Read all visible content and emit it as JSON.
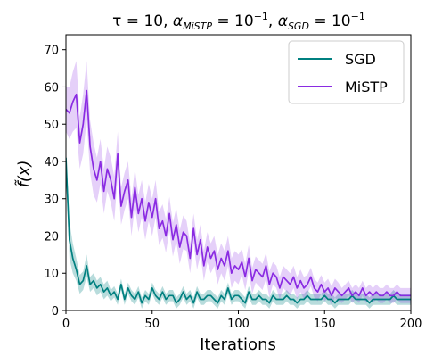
{
  "chart_data": {
    "type": "line",
    "title": "τ = 10, α_MiSTP = 10^−1, α_SGD = 10^−1",
    "title_parts": {
      "tau": "τ = 10, ",
      "alpha1": "α",
      "sub1": "MiSTP",
      "mid1": " = 10",
      "sup1": "−1",
      "comma": ", ",
      "alpha2": "α",
      "sub2": "SGD",
      "mid2": " = 10",
      "sup2": "−1"
    },
    "xlabel": "Iterations",
    "ylabel": "f̃(x)",
    "xlim": [
      0,
      200
    ],
    "ylim": [
      0,
      74
    ],
    "xticks": [
      0,
      50,
      100,
      150,
      200
    ],
    "yticks": [
      0,
      10,
      20,
      30,
      40,
      50,
      60,
      70
    ],
    "grid": false,
    "legend_position": "top-right",
    "x": [
      0,
      2,
      4,
      6,
      8,
      10,
      12,
      14,
      16,
      18,
      20,
      22,
      24,
      26,
      28,
      30,
      32,
      34,
      36,
      38,
      40,
      42,
      44,
      46,
      48,
      50,
      52,
      54,
      56,
      58,
      60,
      62,
      64,
      66,
      68,
      70,
      72,
      74,
      76,
      78,
      80,
      82,
      84,
      86,
      88,
      90,
      92,
      94,
      96,
      98,
      100,
      102,
      104,
      106,
      108,
      110,
      112,
      114,
      116,
      118,
      120,
      122,
      124,
      126,
      128,
      130,
      132,
      134,
      136,
      138,
      140,
      142,
      144,
      146,
      148,
      150,
      152,
      154,
      156,
      158,
      160,
      162,
      164,
      166,
      168,
      170,
      172,
      174,
      176,
      178,
      180,
      182,
      184,
      186,
      188,
      190,
      192,
      194,
      196,
      198,
      200
    ],
    "series": [
      {
        "name": "SGD",
        "color": "#008080",
        "values": [
          41,
          19,
          14,
          11,
          7,
          8,
          12,
          7,
          8,
          6,
          7,
          5,
          6,
          4,
          5,
          3,
          7,
          3,
          6,
          4,
          3,
          5,
          2,
          4,
          3,
          6,
          4,
          3,
          5,
          3,
          4,
          4,
          2,
          3,
          5,
          3,
          4,
          2,
          5,
          3,
          3,
          4,
          4,
          3,
          2,
          4,
          3,
          6,
          3,
          4,
          4,
          3,
          2,
          5,
          3,
          3,
          4,
          3,
          3,
          2,
          4,
          3,
          3,
          3,
          4,
          3,
          3,
          2,
          3,
          3,
          4,
          3,
          3,
          3,
          3,
          4,
          3,
          3,
          2,
          3,
          3,
          3,
          3,
          4,
          3,
          3,
          3,
          3,
          2,
          3,
          3,
          3,
          3,
          3,
          3,
          4,
          3,
          3,
          3,
          3,
          3
        ],
        "band": [
          3,
          5,
          4,
          3,
          2.5,
          2.5,
          3,
          2,
          2,
          2,
          2,
          2,
          2,
          1.5,
          1.5,
          1.5,
          1.5,
          1.5,
          1.5,
          1.5,
          1.5,
          1.5,
          1.5,
          1.5,
          1.5,
          1.5,
          1.5,
          1.5,
          1.5,
          1.5,
          1.5,
          1.5,
          1.5,
          1.5,
          1.5,
          1.5,
          1.5,
          1.5,
          1.5,
          1.5,
          1.5,
          1.5,
          1.5,
          1.5,
          1.5,
          1.5,
          1.5,
          1.5,
          1.5,
          1.5,
          1.5,
          1.5,
          1.5,
          1.5,
          1.5,
          1.5,
          1.5,
          1.5,
          1.5,
          1.5,
          1.5,
          1.5,
          1.5,
          1.5,
          1.5,
          1.5,
          1.5,
          1.5,
          1.5,
          1.5,
          1.5,
          1.5,
          1.5,
          1.5,
          1.5,
          1.5,
          1.5,
          1.5,
          1.5,
          1.5,
          1.5,
          1.5,
          1.5,
          1.5,
          1.5,
          1.5,
          1.5,
          1.5,
          1.5,
          1.5,
          1.5,
          1.5,
          1.5,
          1.5,
          1.5,
          1.5,
          1.5,
          1.5,
          1.5,
          1.5,
          1.5
        ]
      },
      {
        "name": "MiSTP",
        "color": "#8A2BE2",
        "values": [
          54,
          53,
          56,
          58,
          45,
          50,
          59,
          44,
          38,
          35,
          40,
          32,
          38,
          35,
          30,
          42,
          28,
          32,
          35,
          25,
          33,
          26,
          30,
          24,
          29,
          25,
          30,
          22,
          24,
          20,
          26,
          19,
          23,
          17,
          21,
          20,
          14,
          22,
          15,
          19,
          12,
          17,
          14,
          16,
          11,
          14,
          12,
          16,
          10,
          12,
          11,
          13,
          9,
          14,
          8,
          11,
          10,
          9,
          12,
          7,
          10,
          9,
          6,
          9,
          8,
          7,
          9,
          6,
          8,
          6,
          7,
          9,
          6,
          5,
          7,
          5,
          6,
          4,
          6,
          5,
          4,
          5,
          6,
          4,
          5,
          4,
          6,
          4,
          5,
          4,
          5,
          4,
          4,
          5,
          4,
          4,
          5,
          4,
          4,
          4,
          4
        ],
        "band": [
          6,
          7,
          8,
          9,
          7,
          8,
          8,
          7,
          7,
          6,
          6,
          6,
          6,
          6,
          6,
          6,
          5,
          5,
          5,
          5,
          5,
          5,
          5,
          5,
          5,
          5,
          5,
          4.5,
          4.5,
          4.5,
          4.5,
          4.5,
          4.5,
          4.5,
          4.5,
          4,
          4,
          4,
          4,
          4,
          4,
          4,
          4,
          4,
          4,
          4,
          4,
          4,
          4,
          4,
          4,
          3.5,
          3.5,
          3.5,
          3.5,
          3.5,
          3.5,
          3.5,
          3.5,
          3.5,
          3,
          3,
          3,
          3,
          3,
          3,
          3,
          3,
          3,
          3,
          2.5,
          2.5,
          2.5,
          2.5,
          2.5,
          2.5,
          2.5,
          2.5,
          2.5,
          2.5,
          2,
          2,
          2,
          2,
          2,
          2,
          2,
          2,
          2,
          2,
          2,
          2,
          2,
          2,
          2,
          2,
          2,
          2,
          2,
          2,
          2
        ]
      }
    ]
  }
}
